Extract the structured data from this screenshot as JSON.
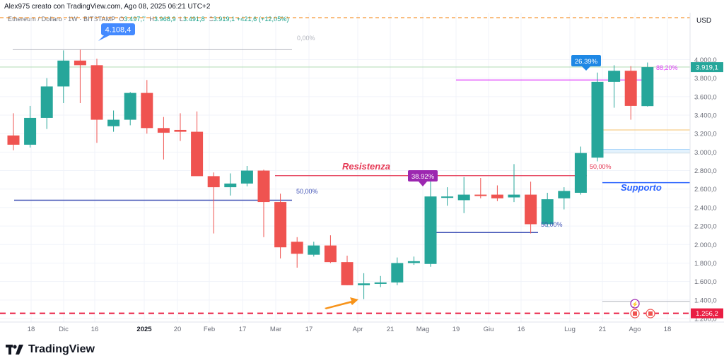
{
  "header": {
    "attribution": "Alex975 creato con TradingView.com, Ago 08, 2025 06:21 UTC+2",
    "symbol": "Ethereum / Dollaro · 1W · BITSTAMP",
    "o_label": "O",
    "o_val": "3.497,7",
    "h_label": "H",
    "h_val": "3.968,9",
    "l_label": "L",
    "l_val": "3.491,8",
    "c_label": "C",
    "c_val": "3.919,1 +421,6 (+12,05%)"
  },
  "footer": {
    "brand": "TradingView"
  },
  "colors": {
    "up": "#26a69a",
    "down": "#ef5350",
    "blue": "#2962ff",
    "pink": "#e91e63",
    "purple": "#9c27b0",
    "orange": "#f7931a",
    "red": "#e91e43"
  },
  "chart_data": {
    "type": "candlestick",
    "timeframe": "1W",
    "currency": "USD",
    "y_ticks": [
      "4.000,0",
      "3.800,0",
      "3.600,0",
      "3.400,0",
      "3.200,0",
      "3.000,0",
      "2.800,0",
      "2.600,0",
      "2.400,0",
      "2.200,0",
      "2.000,0",
      "1.800,0",
      "1.600,0",
      "1.400,0",
      "1.200,0"
    ],
    "x_ticks": [
      "18",
      "Dic",
      "16",
      "2025",
      "20",
      "Feb",
      "17",
      "Mar",
      "17",
      "Apr",
      "21",
      "Mag",
      "19",
      "Giu",
      "16",
      "Lug",
      "21",
      "Ago",
      "18"
    ],
    "ylim": [
      1150,
      4280
    ],
    "candles": [
      {
        "o": 3180,
        "h": 3420,
        "l": 3020,
        "c": 3080
      },
      {
        "o": 3080,
        "h": 3500,
        "l": 3050,
        "c": 3370
      },
      {
        "o": 3370,
        "h": 3800,
        "l": 3250,
        "c": 3710
      },
      {
        "o": 3710,
        "h": 4100,
        "l": 3530,
        "c": 3990
      },
      {
        "o": 3990,
        "h": 4108,
        "l": 3530,
        "c": 3940
      },
      {
        "o": 3940,
        "h": 4010,
        "l": 3100,
        "c": 3350
      },
      {
        "o": 3280,
        "h": 3450,
        "l": 3220,
        "c": 3350
      },
      {
        "o": 3350,
        "h": 3650,
        "l": 3290,
        "c": 3640
      },
      {
        "o": 3640,
        "h": 3780,
        "l": 3200,
        "c": 3260
      },
      {
        "o": 3260,
        "h": 3380,
        "l": 2920,
        "c": 3210
      },
      {
        "o": 3240,
        "h": 3420,
        "l": 3120,
        "c": 3220
      },
      {
        "o": 3220,
        "h": 3440,
        "l": 2760,
        "c": 2740
      },
      {
        "o": 2740,
        "h": 2780,
        "l": 2120,
        "c": 2620
      },
      {
        "o": 2620,
        "h": 2770,
        "l": 2530,
        "c": 2660
      },
      {
        "o": 2660,
        "h": 2850,
        "l": 2630,
        "c": 2800
      },
      {
        "o": 2800,
        "h": 2810,
        "l": 2080,
        "c": 2460
      },
      {
        "o": 2460,
        "h": 2550,
        "l": 1850,
        "c": 1970
      },
      {
        "o": 2030,
        "h": 2080,
        "l": 1750,
        "c": 1900
      },
      {
        "o": 1890,
        "h": 2030,
        "l": 1870,
        "c": 1990
      },
      {
        "o": 1990,
        "h": 2100,
        "l": 1800,
        "c": 1810
      },
      {
        "o": 1810,
        "h": 1880,
        "l": 1560,
        "c": 1560
      },
      {
        "o": 1560,
        "h": 1690,
        "l": 1410,
        "c": 1580
      },
      {
        "o": 1580,
        "h": 1660,
        "l": 1540,
        "c": 1590
      },
      {
        "o": 1590,
        "h": 1860,
        "l": 1560,
        "c": 1800
      },
      {
        "o": 1800,
        "h": 1870,
        "l": 1780,
        "c": 1820
      },
      {
        "o": 1790,
        "h": 2730,
        "l": 1760,
        "c": 2520
      },
      {
        "o": 2510,
        "h": 2620,
        "l": 2420,
        "c": 2520
      },
      {
        "o": 2480,
        "h": 2730,
        "l": 2340,
        "c": 2540
      },
      {
        "o": 2540,
        "h": 2720,
        "l": 2500,
        "c": 2530
      },
      {
        "o": 2540,
        "h": 2640,
        "l": 2470,
        "c": 2500
      },
      {
        "o": 2510,
        "h": 2870,
        "l": 2460,
        "c": 2540
      },
      {
        "o": 2540,
        "h": 2680,
        "l": 2120,
        "c": 2220
      },
      {
        "o": 2220,
        "h": 2560,
        "l": 2190,
        "c": 2490
      },
      {
        "o": 2500,
        "h": 2620,
        "l": 2380,
        "c": 2580
      },
      {
        "o": 2560,
        "h": 3060,
        "l": 2540,
        "c": 2990
      },
      {
        "o": 2940,
        "h": 3860,
        "l": 2900,
        "c": 3760
      },
      {
        "o": 3760,
        "h": 3940,
        "l": 3480,
        "c": 3880
      },
      {
        "o": 3880,
        "h": 3930,
        "l": 3350,
        "c": 3500
      },
      {
        "o": 3498,
        "h": 3969,
        "l": 3492,
        "c": 3919
      }
    ],
    "annotations": {
      "high_label": "4.108,4",
      "fib_top": "0,00%",
      "fib_right": "88,20%",
      "resistance": "Resistenza",
      "resistance_fib": "50,00%",
      "support": "Supporto",
      "mid_fib_left": "50,00%",
      "mid_fib_right": "50,00%",
      "badge_july": "26.39%",
      "badge_april": "38.92%",
      "last_price": "3.919,1",
      "dashed_low": "1.256,2"
    }
  }
}
